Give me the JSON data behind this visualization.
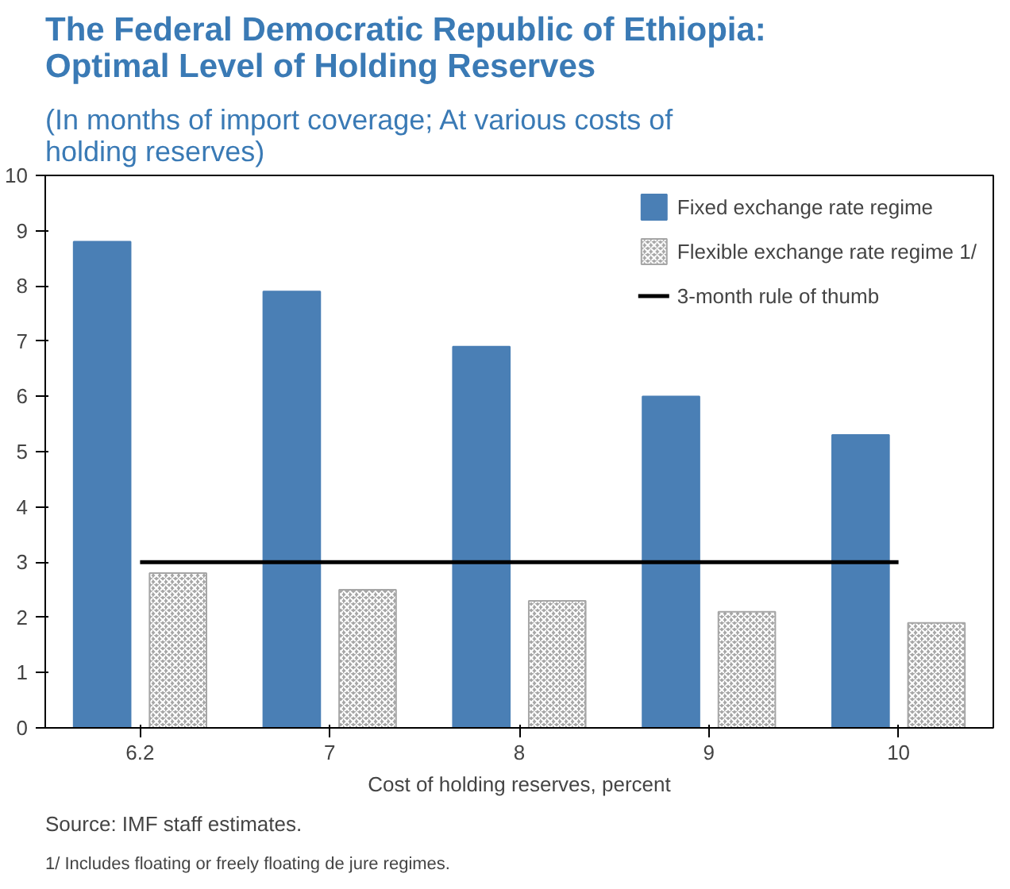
{
  "chart_data": {
    "type": "bar",
    "title": "The Federal Democratic Republic of Ethiopia: Optimal Level of Holding Reserves",
    "subtitle": "(In months of import coverage; At various costs of holding reserves)",
    "xlabel": "Cost of holding reserves, percent",
    "categories": [
      "6.2",
      "7",
      "8",
      "9",
      "10"
    ],
    "series": [
      {
        "name": "Fixed exchange rate regime",
        "color": "#4a7fb5",
        "values": [
          8.8,
          7.9,
          6.9,
          6.0,
          5.3
        ]
      },
      {
        "name": "Flexible exchange rate regime 1/",
        "color": "#a6a6a6",
        "values": [
          2.8,
          2.5,
          2.3,
          2.1,
          1.9
        ]
      },
      {
        "name": "3-month rule of thumb",
        "type": "line",
        "color": "#000000",
        "values": [
          3,
          3,
          3,
          3,
          3
        ]
      }
    ],
    "ylim": [
      0,
      10
    ],
    "yticks": [
      0,
      1,
      2,
      3,
      4,
      5,
      6,
      7,
      8,
      9,
      10
    ],
    "grid": false,
    "legend": "top right",
    "annotations": [
      "Source: IMF staff estimates.",
      "1/ Includes floating or freely floating de jure regimes."
    ]
  }
}
